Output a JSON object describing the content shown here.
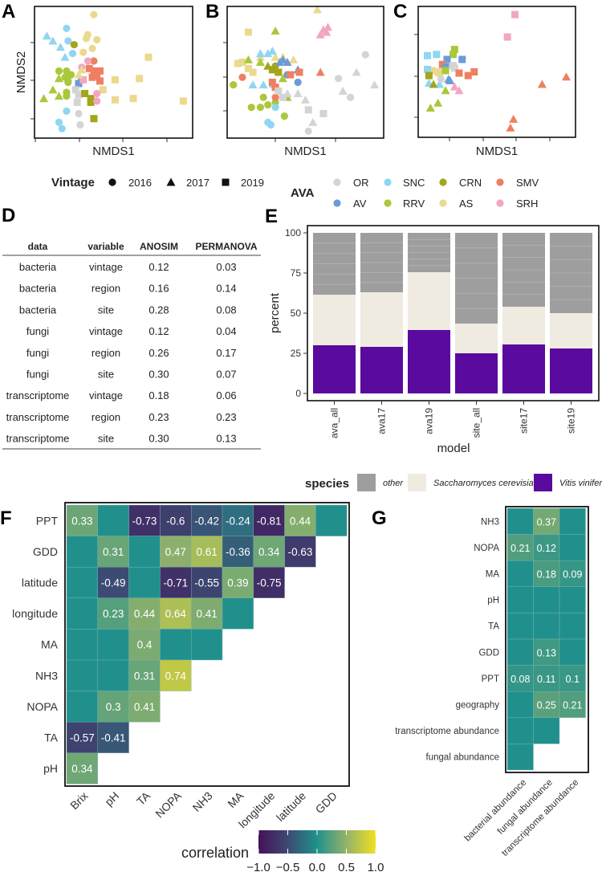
{
  "panel_labels": {
    "A": "A",
    "B": "B",
    "C": "C",
    "D": "D",
    "E": "E",
    "F": "F",
    "G": "G"
  },
  "colors": {
    "ava": {
      "OR": "#d4d4d4",
      "SNC": "#8fd6f2",
      "CRN": "#a3a51a",
      "SMV": "#ef7f62",
      "AV": "#6a9bd8",
      "RRV": "#a9c83c",
      "AS": "#ecd98e",
      "SRH": "#f3a6bf"
    },
    "species": {
      "other": "#9e9e9e",
      "Saccharomyces cerevisiae": "#efebe1",
      "Vitis vinifera": "#5a0a9e"
    },
    "correlation_scale": [
      "#44115a",
      "#3d4a72",
      "#21908c",
      "#93b26a",
      "#f0e020"
    ]
  },
  "vintage_legend": {
    "title": "Vintage",
    "items": [
      {
        "label": "2016",
        "shape": "circle"
      },
      {
        "label": "2017",
        "shape": "triangle"
      },
      {
        "label": "2019",
        "shape": "square"
      }
    ]
  },
  "ava_legend": {
    "title": "AVA",
    "items": [
      "OR",
      "SNC",
      "CRN",
      "SMV",
      "AV",
      "RRV",
      "AS",
      "SRH"
    ]
  },
  "species_legend": {
    "title": "species",
    "items": [
      "other",
      "Saccharomyces cerevisiae",
      "Vitis vinifera"
    ]
  },
  "table": {
    "headers": [
      "data",
      "variable",
      "ANOSIM",
      "PERMANOVA"
    ],
    "rows": [
      [
        "bacteria",
        "vintage",
        "0.12",
        "0.03"
      ],
      [
        "bacteria",
        "region",
        "0.16",
        "0.14"
      ],
      [
        "bacteria",
        "site",
        "0.28",
        "0.08"
      ],
      [
        "fungi",
        "vintage",
        "0.12",
        "0.04"
      ],
      [
        "fungi",
        "region",
        "0.26",
        "0.17"
      ],
      [
        "fungi",
        "site",
        "0.30",
        "0.07"
      ],
      [
        "transcriptome",
        "vintage",
        "0.18",
        "0.06"
      ],
      [
        "transcriptome",
        "region",
        "0.23",
        "0.23"
      ],
      [
        "transcriptome",
        "site",
        "0.30",
        "0.13"
      ]
    ]
  },
  "chart_data": [
    {
      "panel": "A",
      "type": "scatter",
      "xlabel": "NMDS1",
      "ylabel": "NMDS2",
      "grid": false,
      "points": [
        [
          37,
          96,
          "AS",
          2016
        ],
        [
          19,
          85,
          "SNC",
          2016
        ],
        [
          6,
          79,
          "SNC",
          2017
        ],
        [
          10,
          75,
          "SNC",
          2017
        ],
        [
          20,
          75,
          "SNC",
          2016
        ],
        [
          24,
          72,
          "CRN",
          2016
        ],
        [
          33,
          80,
          "AS",
          2016
        ],
        [
          32,
          77,
          "AS",
          2016
        ],
        [
          39,
          76,
          "AS",
          2016
        ],
        [
          30,
          66,
          "AS",
          2016
        ],
        [
          36,
          69,
          "AS",
          2016
        ],
        [
          15,
          70,
          "SNC",
          2017
        ],
        [
          18,
          62,
          "SNC",
          2017
        ],
        [
          23,
          65,
          "SNC",
          2016
        ],
        [
          73,
          62,
          "AS",
          2019
        ],
        [
          37,
          59,
          "SMV",
          2016
        ],
        [
          33,
          59,
          "SRH",
          2016
        ],
        [
          29,
          54,
          "SRH",
          2016
        ],
        [
          34,
          53,
          "SMV",
          2019
        ],
        [
          37,
          51,
          "SMV",
          2019
        ],
        [
          41,
          51,
          "SMV",
          2019
        ],
        [
          39,
          47,
          "SMV",
          2019
        ],
        [
          36,
          46,
          "SMV",
          2019
        ],
        [
          41,
          43,
          "SMV",
          2019
        ],
        [
          14,
          51,
          "RRV",
          2016
        ],
        [
          19,
          51,
          "RRV",
          2016
        ],
        [
          18,
          46,
          "RRV",
          2016
        ],
        [
          20,
          43,
          "RRV",
          2016
        ],
        [
          22,
          48,
          "RRV",
          2016
        ],
        [
          20,
          42,
          "RRV",
          2016
        ],
        [
          14,
          45,
          "RRV",
          2017
        ],
        [
          10,
          36,
          "RRV",
          2017
        ],
        [
          4,
          29,
          "RRV",
          2017
        ],
        [
          14,
          31,
          "RRV",
          2017
        ],
        [
          19,
          34,
          "RRV",
          2016
        ],
        [
          19,
          31,
          "RRV",
          2016
        ],
        [
          27,
          41,
          "AV",
          2019
        ],
        [
          28,
          44,
          "AV",
          2017
        ],
        [
          30,
          44,
          "SRH",
          2019
        ],
        [
          29,
          52,
          "AS",
          2017
        ],
        [
          27,
          48,
          "AS",
          2017
        ],
        [
          51,
          44,
          "AS",
          2019
        ],
        [
          67,
          45,
          "AS",
          2019
        ],
        [
          43,
          36,
          "AS",
          2019
        ],
        [
          51,
          28,
          "AS",
          2019
        ],
        [
          63,
          29,
          "AS",
          2019
        ],
        [
          96,
          27,
          "AS",
          2019
        ],
        [
          25,
          36,
          "OR",
          2019
        ],
        [
          27,
          32,
          "OR",
          2019
        ],
        [
          26,
          26,
          "OR",
          2019
        ],
        [
          27,
          17,
          "OR",
          2016
        ],
        [
          28,
          8,
          "OR",
          2016
        ],
        [
          31,
          33,
          "CRN",
          2019
        ],
        [
          35,
          29,
          "CRN",
          2019
        ],
        [
          35,
          26,
          "CRN",
          2019
        ],
        [
          37,
          13,
          "CRN",
          2019
        ],
        [
          39,
          33,
          "SRH",
          2016
        ],
        [
          39,
          27,
          "SRH",
          2016
        ],
        [
          19,
          19,
          "SNC",
          2016
        ],
        [
          14,
          10,
          "SNC",
          2016
        ],
        [
          16,
          5,
          "SNC",
          2016
        ]
      ]
    },
    {
      "panel": "B",
      "type": "scatter",
      "xlabel": "NMDS1",
      "ylabel": "",
      "grid": false,
      "points": [
        [
          12,
          82,
          "AS",
          2019
        ],
        [
          8,
          58,
          "AS",
          2019
        ],
        [
          5,
          57,
          "AS",
          2019
        ],
        [
          12,
          53,
          "AS",
          2019
        ],
        [
          15,
          50,
          "AS",
          2019
        ],
        [
          20,
          62,
          "AS",
          2017
        ],
        [
          30,
          62,
          "AS",
          2017
        ],
        [
          35,
          62,
          "AS",
          2017
        ],
        [
          42,
          60,
          "AS",
          2017
        ],
        [
          58,
          100,
          "AS",
          2017
        ],
        [
          30,
          83,
          "RRV",
          2017
        ],
        [
          12,
          60,
          "RRV",
          2017
        ],
        [
          20,
          58,
          "RRV",
          2017
        ],
        [
          35,
          45,
          "RRV",
          2017
        ],
        [
          38,
          30,
          "RRV",
          2017
        ],
        [
          2,
          40,
          "RRV",
          2016
        ],
        [
          22,
          30,
          "RRV",
          2016
        ],
        [
          25,
          24,
          "RRV",
          2016
        ],
        [
          30,
          26,
          "RRV",
          2016
        ],
        [
          20,
          22,
          "RRV",
          2016
        ],
        [
          14,
          22,
          "RRV",
          2016
        ],
        [
          36,
          15,
          "RRV",
          2016
        ],
        [
          25,
          55,
          "CRN",
          2017
        ],
        [
          28,
          52,
          "CRN",
          2019
        ],
        [
          30,
          55,
          "CRN",
          2016
        ],
        [
          32,
          50,
          "CRN",
          2019
        ],
        [
          38,
          48,
          "CRN",
          2016
        ],
        [
          20,
          65,
          "SNC",
          2017
        ],
        [
          25,
          65,
          "SNC",
          2017
        ],
        [
          28,
          67,
          "SNC",
          2017
        ],
        [
          15,
          40,
          "SNC",
          2017
        ],
        [
          22,
          40,
          "SNC",
          2017
        ],
        [
          28,
          40,
          "SNC",
          2016
        ],
        [
          30,
          22,
          "SNC",
          2016
        ],
        [
          25,
          10,
          "SNC",
          2016
        ],
        [
          27,
          8,
          "SNC",
          2016
        ],
        [
          33,
          58,
          "AV",
          2017
        ],
        [
          38,
          58,
          "AV",
          2017
        ],
        [
          45,
          52,
          "AV",
          2017
        ],
        [
          45,
          42,
          "AV",
          2016
        ],
        [
          38,
          48,
          "AV",
          2016
        ],
        [
          35,
          60,
          "AV",
          2017
        ],
        [
          8,
          46,
          "SMV",
          2016
        ],
        [
          28,
          42,
          "SMV",
          2019
        ],
        [
          30,
          38,
          "SMV",
          2019
        ],
        [
          40,
          48,
          "SMV",
          2019
        ],
        [
          46,
          50,
          "SMV",
          2019
        ],
        [
          60,
          50,
          "SMV",
          2017
        ],
        [
          30,
          30,
          "SMV",
          2016
        ],
        [
          32,
          35,
          "OR",
          2019
        ],
        [
          35,
          30,
          "OR",
          2019
        ],
        [
          38,
          33,
          "OR",
          2017
        ],
        [
          45,
          33,
          "OR",
          2017
        ],
        [
          50,
          28,
          "OR",
          2017
        ],
        [
          52,
          20,
          "OR",
          2019
        ],
        [
          62,
          17,
          "OR",
          2019
        ],
        [
          55,
          10,
          "OR",
          2017
        ],
        [
          52,
          3,
          "OR",
          2016
        ],
        [
          72,
          45,
          "OR",
          2016
        ],
        [
          90,
          64,
          "OR",
          2016
        ],
        [
          84,
          50,
          "OR",
          2017
        ],
        [
          96,
          40,
          "OR",
          2017
        ],
        [
          75,
          35,
          "OR",
          2017
        ],
        [
          80,
          30,
          "OR",
          2016
        ],
        [
          60,
          80,
          "SRH",
          2017
        ],
        [
          62,
          84,
          "SRH",
          2017
        ],
        [
          64,
          82,
          "SRH",
          2017
        ],
        [
          65,
          86,
          "SRH",
          2017
        ]
      ]
    },
    {
      "panel": "C",
      "type": "scatter",
      "xlabel": "NMDS1",
      "ylabel": "",
      "grid": false,
      "points": [
        [
          62,
          96,
          "SRH",
          2019
        ],
        [
          57,
          78,
          "SRH",
          2019
        ],
        [
          4,
          63,
          "SNC",
          2019
        ],
        [
          10,
          64,
          "SNC",
          2019
        ],
        [
          22,
          68,
          "RRV",
          2019
        ],
        [
          21,
          64,
          "RRV",
          2019
        ],
        [
          17,
          60,
          "AV",
          2019
        ],
        [
          27,
          60,
          "AV",
          2019
        ],
        [
          14,
          56,
          "SMV",
          2019
        ],
        [
          21,
          55,
          "OR",
          2019
        ],
        [
          22,
          53,
          "OR",
          2019
        ],
        [
          16,
          54,
          "AV",
          2019
        ],
        [
          25,
          49,
          "SMV",
          2019
        ],
        [
          31,
          47,
          "SMV",
          2019
        ],
        [
          35,
          50,
          "SMV",
          2019
        ],
        [
          80,
          40,
          "SMV",
          2017
        ],
        [
          96,
          46,
          "SMV",
          2017
        ],
        [
          61,
          12,
          "SMV",
          2017
        ],
        [
          59,
          5,
          "SMV",
          2017
        ],
        [
          7,
          51,
          "AS",
          2019
        ],
        [
          11,
          50,
          "AS",
          2019
        ],
        [
          12,
          49,
          "AS",
          2019
        ],
        [
          4,
          52,
          "SNC",
          2019
        ],
        [
          5,
          41,
          "SNC",
          2017
        ],
        [
          12,
          40,
          "SNC",
          2017
        ],
        [
          5,
          47,
          "CRN",
          2019
        ],
        [
          8,
          40,
          "CRN",
          2017
        ],
        [
          16,
          51,
          "RRV",
          2019
        ],
        [
          16,
          35,
          "RRV",
          2017
        ],
        [
          6,
          21,
          "RRV",
          2017
        ],
        [
          11,
          25,
          "RRV",
          2017
        ],
        [
          13,
          44,
          "OR",
          2016
        ],
        [
          18,
          44,
          "AV",
          2017
        ],
        [
          19,
          43,
          "AV",
          2017
        ],
        [
          22,
          38,
          "SRH",
          2017
        ],
        [
          25,
          35,
          "SRH",
          2017
        ]
      ]
    },
    {
      "panel": "E",
      "type": "bar",
      "stacked": true,
      "xlabel": "model",
      "ylabel": "percent",
      "ylim": [
        0,
        100
      ],
      "yticks": [
        "0",
        "25",
        "50",
        "75",
        "100"
      ],
      "categories": [
        "ava_all",
        "ava17",
        "ava19",
        "site_all",
        "site17",
        "site19"
      ],
      "series": [
        {
          "name": "Vitis vinifera",
          "values": [
            30,
            29,
            39.5,
            25,
            30.5,
            28
          ]
        },
        {
          "name": "Saccharomyces cerevisiae",
          "values": [
            31.5,
            34,
            36,
            18.5,
            23.5,
            22
          ]
        },
        {
          "name": "other",
          "values": [
            38.5,
            37,
            24.5,
            56.5,
            46,
            50
          ]
        }
      ]
    },
    {
      "panel": "F",
      "type": "heatmap",
      "legend_title": "correlation",
      "scale_ticks": [
        "−1.0",
        "−0.5",
        "0.0",
        "0.5",
        "1.0"
      ],
      "range": [
        -1,
        1
      ],
      "rows": [
        "PPT",
        "GDD",
        "latitude",
        "longitude",
        "MA",
        "NH3",
        "NOPA",
        "TA",
        "pH"
      ],
      "cols": [
        "Brix",
        "pH",
        "TA",
        "NOPA",
        "NH3",
        "MA",
        "longitude",
        "latitude",
        "GDD"
      ],
      "values": [
        [
          0.33,
          null,
          -0.73,
          -0.6,
          -0.42,
          -0.24,
          -0.81,
          0.44,
          null
        ],
        [
          null,
          0.31,
          null,
          0.47,
          0.61,
          -0.36,
          0.34,
          -0.63
        ],
        [
          null,
          -0.49,
          null,
          -0.71,
          -0.55,
          0.39,
          -0.75
        ],
        [
          null,
          0.23,
          0.44,
          0.64,
          0.41,
          null
        ],
        [
          null,
          null,
          0.4,
          null,
          null
        ],
        [
          null,
          null,
          0.31,
          0.74
        ],
        [
          null,
          0.3,
          0.41
        ],
        [
          -0.57,
          -0.41
        ],
        [
          0.34
        ]
      ]
    },
    {
      "panel": "G",
      "type": "heatmap",
      "rows": [
        "NH3",
        "NOPA",
        "MA",
        "pH",
        "TA",
        "GDD",
        "PPT",
        "geography",
        "transcriptome abundance",
        "fungal abundance"
      ],
      "cols": [
        "bacterial abundance",
        "fungal abundance",
        "transcriptome abundance"
      ],
      "values": [
        [
          null,
          0.37,
          null
        ],
        [
          0.21,
          0.12,
          null
        ],
        [
          null,
          0.18,
          0.09
        ],
        [
          null,
          null,
          null
        ],
        [
          null,
          null,
          null
        ],
        [
          null,
          0.13,
          null
        ],
        [
          0.08,
          0.11,
          0.1
        ],
        [
          null,
          0.25,
          0.21
        ],
        [
          null,
          null
        ],
        [
          null
        ]
      ]
    }
  ]
}
